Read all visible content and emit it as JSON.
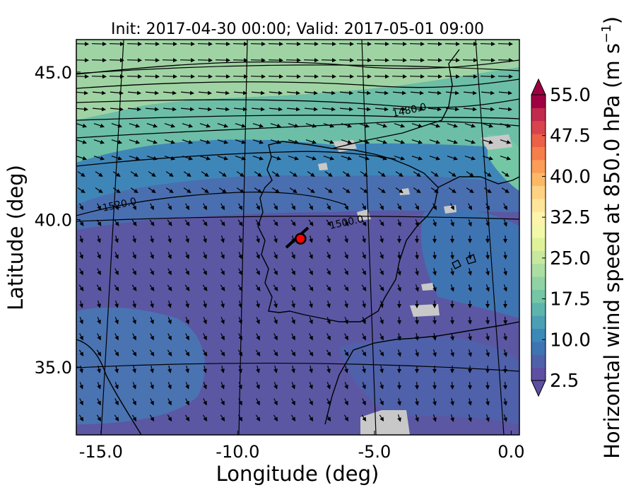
{
  "title": "Init: 2017-04-30 00:00; Valid: 2017-05-01 09:00",
  "map": {
    "xlabel": "Longitude (deg)",
    "ylabel": "Latitude (deg)",
    "xlim": [
      -15.9,
      0.3
    ],
    "ylim": [
      32.7,
      46.1
    ],
    "xticks": [
      {
        "value": -15,
        "label": "-15.0"
      },
      {
        "value": -10,
        "label": "-10.0"
      },
      {
        "value": -5,
        "label": "-5.0"
      },
      {
        "value": 0,
        "label": "0.0"
      }
    ],
    "yticks": [
      {
        "value": 35,
        "label": "35.0"
      },
      {
        "value": 40,
        "label": "40.0"
      },
      {
        "value": 45,
        "label": "45.0"
      }
    ],
    "contour_labels": [
      {
        "text": "1520.0",
        "lon": -14.3,
        "lat": 40.4
      },
      {
        "text": "1480.0",
        "lon": -3.7,
        "lat": 43.6
      },
      {
        "text": "1500.0",
        "lon": -6.0,
        "lat": 39.8
      }
    ],
    "marker": {
      "lon": -7.7,
      "lat": 39.35,
      "color": "#ff0000"
    }
  },
  "colorbar": {
    "label": "Horizontal wind speed at 850.0 hPa (m s",
    "label_unit_sup": "−1",
    "label_close": ")",
    "tick_labels": [
      "2.5",
      "10.0",
      "17.5",
      "25.0",
      "32.5",
      "40.0",
      "47.5",
      "55.0"
    ],
    "levels": [
      2.5,
      5,
      7.5,
      10,
      12.5,
      15,
      17.5,
      20,
      22.5,
      25,
      27.5,
      30,
      32.5,
      35,
      37.5,
      40,
      42.5,
      45,
      47.5,
      50,
      52.5,
      55
    ],
    "colors": [
      "#5e4fa2",
      "#4f61aa",
      "#3f74b2",
      "#3b89b7",
      "#4b9fb4",
      "#5db4ad",
      "#74c7a5",
      "#90d2a4",
      "#acdda2",
      "#c7e89e",
      "#dff299",
      "#f1f9a9",
      "#fdf3aa",
      "#fee59a",
      "#fdd283",
      "#fdb866",
      "#fb9c59",
      "#f67e4b",
      "#eb6046",
      "#d8434e",
      "#c22a4d",
      "#9e0142"
    ]
  }
}
